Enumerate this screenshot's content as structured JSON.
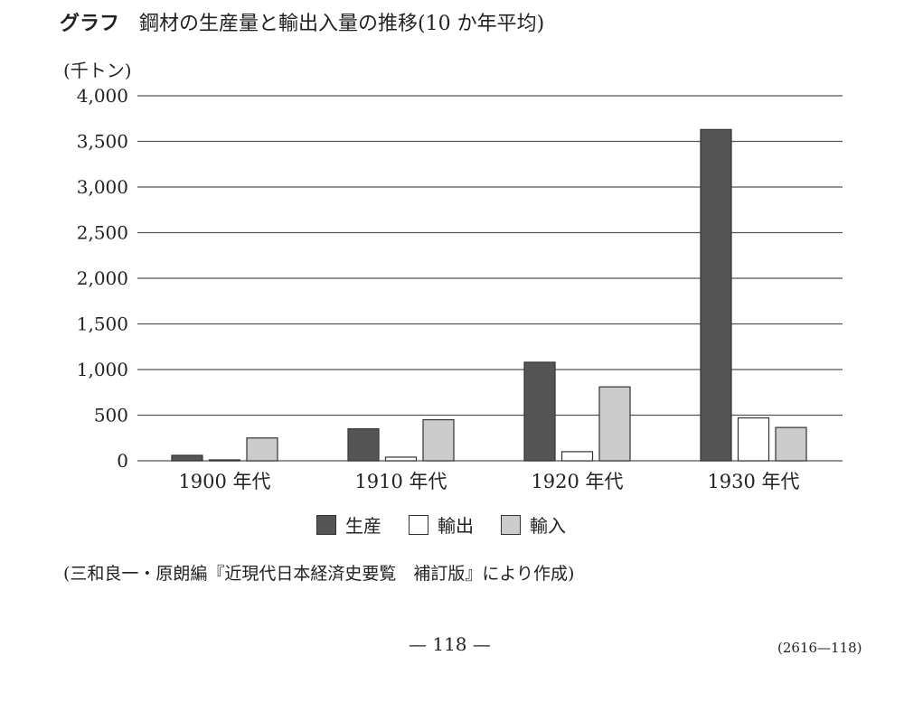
{
  "heading": {
    "label": "グラフ",
    "title": "鋼材の生産量と輸出入量の推移(10 か年平均)"
  },
  "unit_label": "(千トン)",
  "chart_data": {
    "type": "bar",
    "categories": [
      "1900 年代",
      "1910 年代",
      "1920 年代",
      "1930 年代"
    ],
    "series": [
      {
        "name": "生産",
        "color": "#555555",
        "values": [
          60,
          350,
          1080,
          3630
        ]
      },
      {
        "name": "輸出",
        "color": "#ffffff",
        "values": [
          10,
          40,
          100,
          470
        ]
      },
      {
        "name": "輸入",
        "color": "#cccccc",
        "values": [
          250,
          450,
          810,
          365
        ]
      }
    ],
    "yticks": [
      "4,000",
      "3,500",
      "3,000",
      "2,500",
      "2,000",
      "1,500",
      "1,000",
      "500",
      "0"
    ],
    "ylim": [
      0,
      4000
    ],
    "grid": true,
    "legend_position": "bottom"
  },
  "source": "(三和良一・原朗編『近現代日本経済史要覧　補訂版』により作成)",
  "page_number": "— 118 —",
  "page_code": "(2616—118)"
}
